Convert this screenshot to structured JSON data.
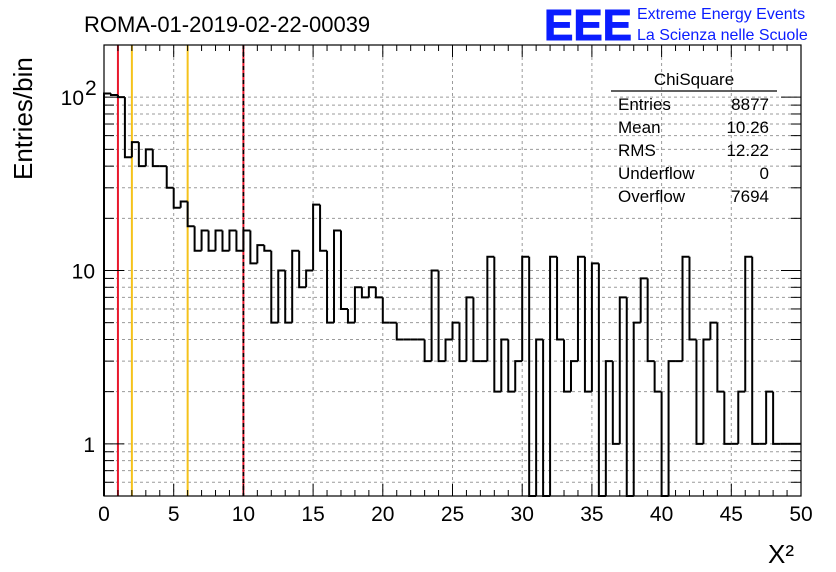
{
  "chart_data": {
    "type": "histogram",
    "title": "ROMA-01-2019-02-22-00039",
    "xlabel": "X²",
    "ylabel": "Entries/bin",
    "xlim": [
      0,
      50
    ],
    "ylim": [
      0.5,
      200
    ],
    "yscale": "log",
    "grid": true,
    "bin_width": 0.5,
    "x_ticks": [
      "0",
      "5",
      "10",
      "15",
      "20",
      "25",
      "30",
      "35",
      "40",
      "45",
      "50"
    ],
    "y_ticks": [
      {
        "value": 1,
        "base": "1",
        "exp": ""
      },
      {
        "value": 10,
        "base": "10",
        "exp": ""
      },
      {
        "value": 100,
        "base": "10",
        "exp": "2"
      }
    ],
    "values": [
      105,
      103,
      100,
      45,
      55,
      40,
      50,
      40,
      40,
      30,
      23,
      25,
      18,
      13,
      17,
      13,
      17,
      13,
      17,
      13,
      17,
      11,
      14,
      13,
      5,
      10,
      5,
      13,
      8,
      10,
      24,
      13,
      5,
      17,
      6,
      5,
      8,
      7,
      8,
      7,
      5,
      5,
      4,
      4,
      4,
      4,
      3,
      10,
      3,
      4,
      5,
      3,
      7,
      3,
      3,
      12,
      2,
      4,
      2,
      3,
      12,
      0,
      4,
      0,
      12,
      4,
      2,
      3,
      12,
      2,
      11,
      0,
      3,
      1,
      7,
      0,
      5,
      9,
      3,
      2,
      0,
      3,
      3,
      12,
      4,
      1,
      4,
      5,
      2,
      1,
      1,
      2,
      12,
      1,
      1,
      2,
      1,
      1,
      1,
      1
    ],
    "vertical_lines": [
      {
        "x": 1,
        "color": "#e8182c",
        "dash": false
      },
      {
        "x": 2,
        "color": "#f5c21b",
        "dash": false
      },
      {
        "x": 6,
        "color": "#f5c21b",
        "dash": false
      },
      {
        "x": 10,
        "color": "#e8182c",
        "dash": false
      },
      {
        "x": 10,
        "color": "#000000",
        "dash": true
      }
    ],
    "line_color": "#000000",
    "grid_color": "#9b9b9b",
    "stats": {
      "title": "ChiSquare",
      "rows": [
        {
          "label": "Entries",
          "value": "8877"
        },
        {
          "label": "Mean",
          "value": "10.26"
        },
        {
          "label": "RMS",
          "value": "12.22"
        },
        {
          "label": "Underflow",
          "value": "0"
        },
        {
          "label": "Overflow",
          "value": "7694"
        }
      ]
    },
    "logo": {
      "mark": "EEE",
      "line1": "Extreme Energy Events",
      "line2": "La Scienza nelle Scuole",
      "color": "#0a1cff"
    }
  }
}
